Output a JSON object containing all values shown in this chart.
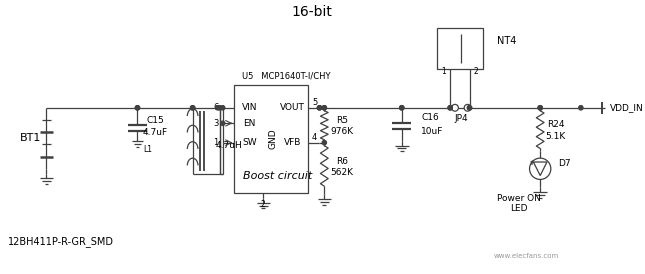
{
  "title": "16-bit",
  "bg_color": "#ffffff",
  "line_color": "#404040",
  "text_color": "#000000",
  "watermark": "www.elecfans.com",
  "bottom_label": "12BH411P-R-GR_SMD",
  "ic_label": "U5   MCP1640T-I/CHY",
  "boost_label": "Boost circuit",
  "vdd_in": "VDD_IN",
  "power_on": "Power ON",
  "led_label": "LED",
  "nt4": "NT4",
  "jp4": "JP4",
  "d7": "D7",
  "components": {
    "BT1": "BT1",
    "C15": "C15",
    "C15_val": "4.7uF",
    "L1": "L1",
    "L1_val": "4.7uH",
    "R5": "R5",
    "R5_val": "976K",
    "R6": "R6",
    "R6_val": "562K",
    "C16": "C16",
    "C16_val": "10uF",
    "R24": "R24",
    "R24_val": "5.1K"
  }
}
